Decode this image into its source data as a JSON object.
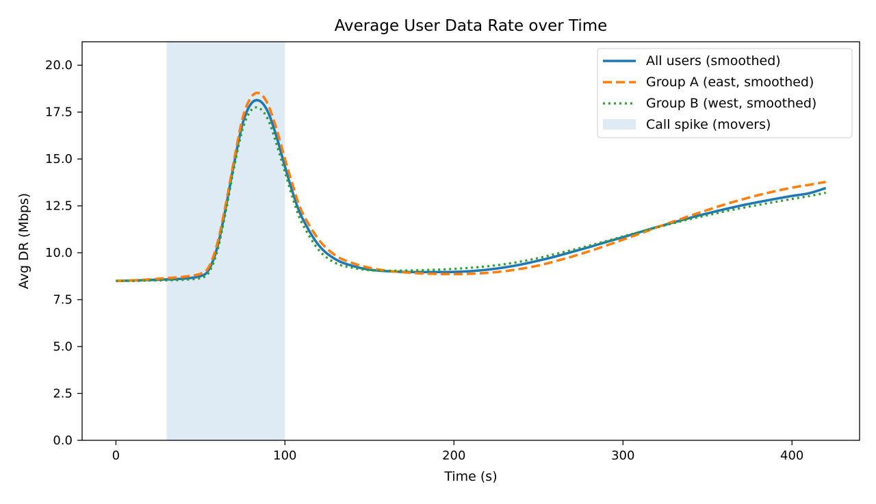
{
  "chart_data": {
    "type": "line",
    "title": "Average User Data Rate over Time",
    "xlabel": "Time (s)",
    "ylabel": "Avg DR (Mbps)",
    "xlim": [
      -20,
      440
    ],
    "ylim": [
      0,
      21.25
    ],
    "xticks": [
      0,
      100,
      200,
      300,
      400
    ],
    "yticks": [
      0.0,
      2.5,
      5.0,
      7.5,
      10.0,
      12.5,
      15.0,
      17.5,
      20.0
    ],
    "grid": false,
    "legend_position": "top-right",
    "shaded_region": {
      "label": "Call spike (movers)",
      "x_start": 30,
      "x_end": 100,
      "color": "#deeaf4"
    },
    "x": [
      0,
      10,
      20,
      30,
      40,
      50,
      55,
      60,
      65,
      70,
      75,
      80,
      85,
      90,
      95,
      100,
      105,
      110,
      120,
      130,
      140,
      150,
      160,
      170,
      180,
      190,
      200,
      210,
      220,
      230,
      240,
      250,
      260,
      270,
      280,
      290,
      300,
      310,
      320,
      330,
      340,
      350,
      360,
      370,
      380,
      390,
      400,
      410,
      420
    ],
    "series": [
      {
        "name": "All users (smoothed)",
        "color": "#1f77b4",
        "style": "solid",
        "values": [
          8.5,
          8.52,
          8.55,
          8.58,
          8.62,
          8.75,
          9.1,
          10.3,
          12.4,
          14.8,
          16.9,
          17.95,
          18.1,
          17.5,
          16.2,
          14.6,
          13.1,
          11.9,
          10.4,
          9.65,
          9.3,
          9.1,
          9.02,
          8.98,
          8.97,
          8.97,
          8.98,
          9.02,
          9.1,
          9.22,
          9.38,
          9.58,
          9.8,
          10.05,
          10.3,
          10.57,
          10.83,
          11.1,
          11.37,
          11.62,
          11.87,
          12.1,
          12.32,
          12.52,
          12.7,
          12.87,
          13.03,
          13.17,
          13.45
        ]
      },
      {
        "name": "Group A (east, smoothed)",
        "color": "#ff7f0e",
        "style": "dashed",
        "values": [
          8.5,
          8.53,
          8.58,
          8.65,
          8.72,
          8.88,
          9.25,
          10.5,
          12.6,
          15.0,
          17.2,
          18.3,
          18.5,
          17.9,
          16.6,
          15.0,
          13.5,
          12.2,
          10.7,
          9.85,
          9.45,
          9.2,
          9.05,
          8.96,
          8.9,
          8.87,
          8.86,
          8.88,
          8.93,
          9.02,
          9.15,
          9.32,
          9.55,
          9.8,
          10.08,
          10.38,
          10.7,
          11.02,
          11.35,
          11.67,
          11.98,
          12.28,
          12.57,
          12.83,
          13.07,
          13.28,
          13.47,
          13.62,
          13.78
        ]
      },
      {
        "name": "Group B (west, smoothed)",
        "color": "#2ca02c",
        "style": "dotted",
        "values": [
          8.5,
          8.5,
          8.52,
          8.53,
          8.56,
          8.65,
          8.95,
          10.1,
          12.2,
          14.6,
          16.6,
          17.6,
          17.7,
          17.1,
          15.8,
          14.3,
          12.8,
          11.6,
          10.15,
          9.45,
          9.2,
          9.07,
          9.04,
          9.05,
          9.07,
          9.1,
          9.14,
          9.2,
          9.28,
          9.39,
          9.54,
          9.72,
          9.93,
          10.15,
          10.38,
          10.62,
          10.87,
          11.11,
          11.35,
          11.58,
          11.8,
          12.0,
          12.2,
          12.38,
          12.55,
          12.71,
          12.87,
          13.02,
          13.2
        ]
      }
    ]
  }
}
